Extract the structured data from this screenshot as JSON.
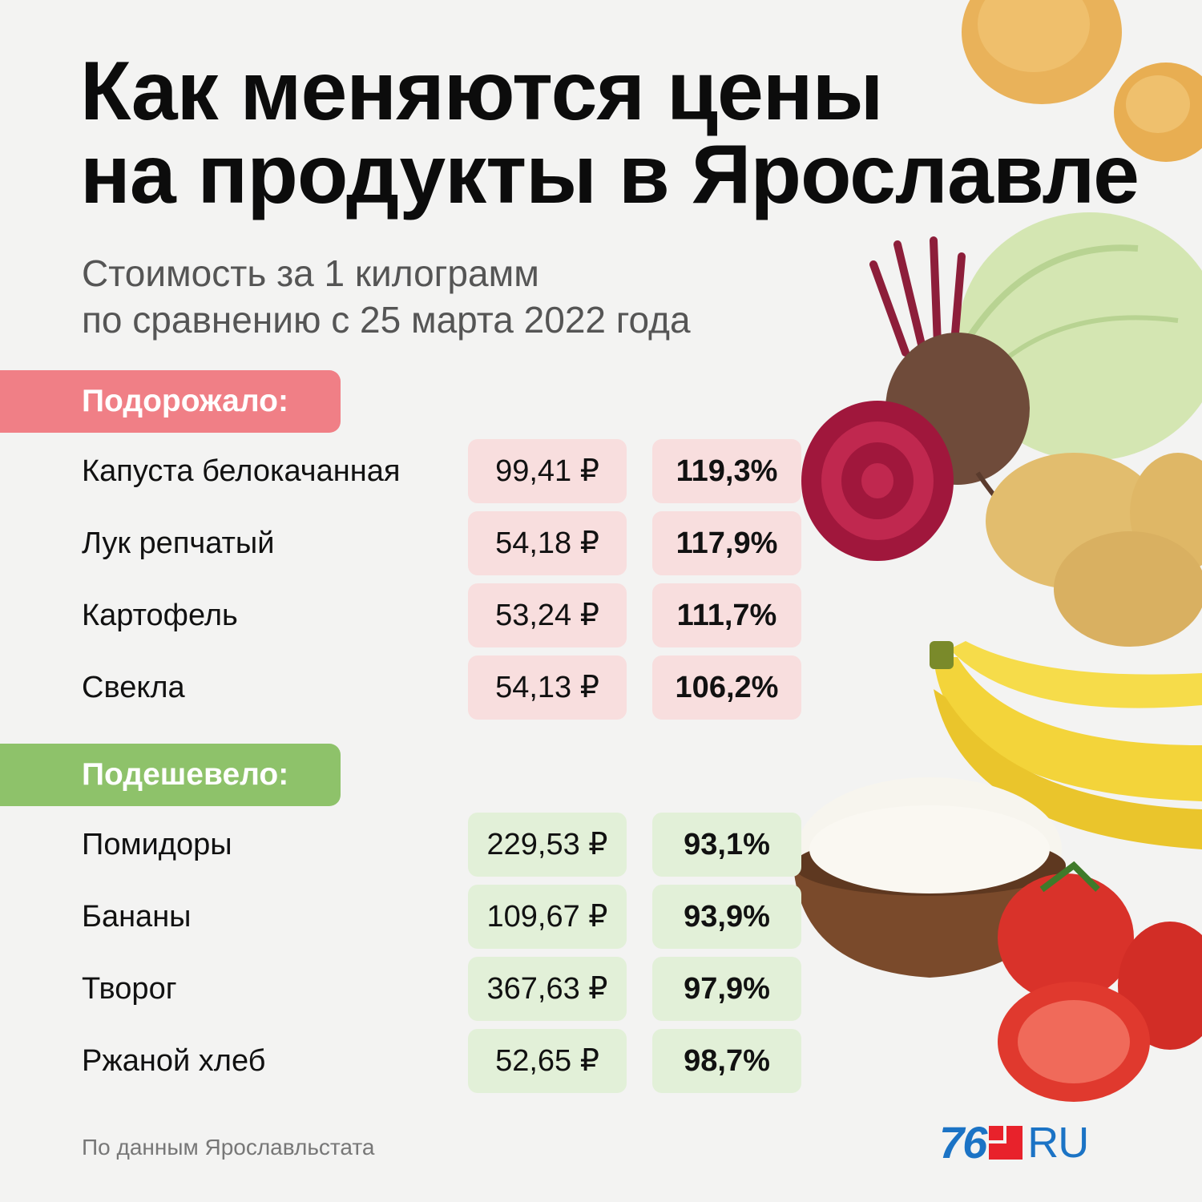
{
  "title": {
    "line1": "Как меняются цены",
    "line2": "на продукты в Ярославле"
  },
  "subtitle": {
    "line1": "Стоимость за 1 килограмм",
    "line2": "по сравнению с 25 марта 2022 года"
  },
  "sections": {
    "up": {
      "label": "Подорожало:",
      "color": "#f07f86",
      "rows": [
        {
          "name": "Капуста белокачанная",
          "price": "99,41 ₽",
          "percent": "119,3%"
        },
        {
          "name": "Лук репчатый",
          "price": "54,18 ₽",
          "percent": "117,9%"
        },
        {
          "name": "Картофель",
          "price": "53,24 ₽",
          "percent": "111,7%"
        },
        {
          "name": "Свекла",
          "price": "54,13 ₽",
          "percent": "106,2%"
        }
      ]
    },
    "down": {
      "label": "Подешевело:",
      "color": "#8ec26a",
      "rows": [
        {
          "name": "Помидоры",
          "price": "229,53 ₽",
          "percent": "93,1%"
        },
        {
          "name": "Бананы",
          "price": "109,67 ₽",
          "percent": "93,9%"
        },
        {
          "name": "Творог",
          "price": "367,63 ₽",
          "percent": "97,9%"
        },
        {
          "name": "Ржаной хлеб",
          "price": "52,65 ₽",
          "percent": "98,7%"
        }
      ]
    }
  },
  "source": "По данным Ярославльстата",
  "logo": {
    "number": "76",
    "suffix": "RU",
    "brand_color": "#1b73c5",
    "accent_color": "#e8222b"
  },
  "images": [
    "onion-icon",
    "cabbage-icon",
    "beet-icon",
    "potato-icon",
    "banana-icon",
    "cottage-cheese-icon",
    "tomato-icon"
  ]
}
